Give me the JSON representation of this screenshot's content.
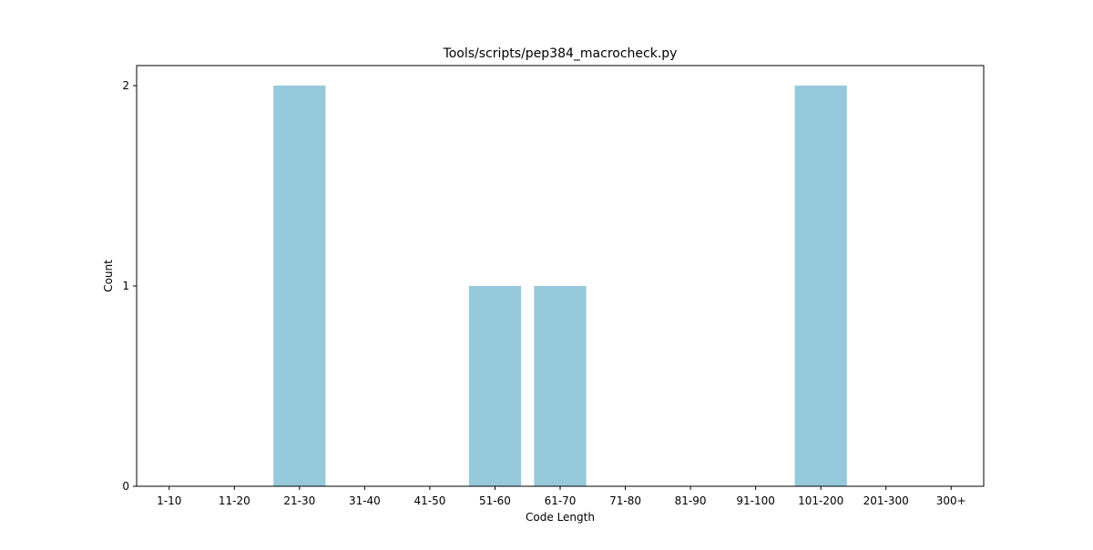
{
  "chart_data": {
    "type": "bar",
    "title": "Tools/scripts/pep384_macrocheck.py",
    "xlabel": "Code Length",
    "ylabel": "Count",
    "categories": [
      "1-10",
      "11-20",
      "21-30",
      "31-40",
      "41-50",
      "51-60",
      "61-70",
      "71-80",
      "81-90",
      "91-100",
      "101-200",
      "201-300",
      "300+"
    ],
    "values": [
      0,
      0,
      2,
      0,
      0,
      1,
      1,
      0,
      0,
      0,
      2,
      0,
      0
    ],
    "ylim": [
      0,
      2.1
    ],
    "yticks": [
      0,
      1,
      2
    ],
    "grid": false,
    "bar_color": "#96c9dc"
  }
}
